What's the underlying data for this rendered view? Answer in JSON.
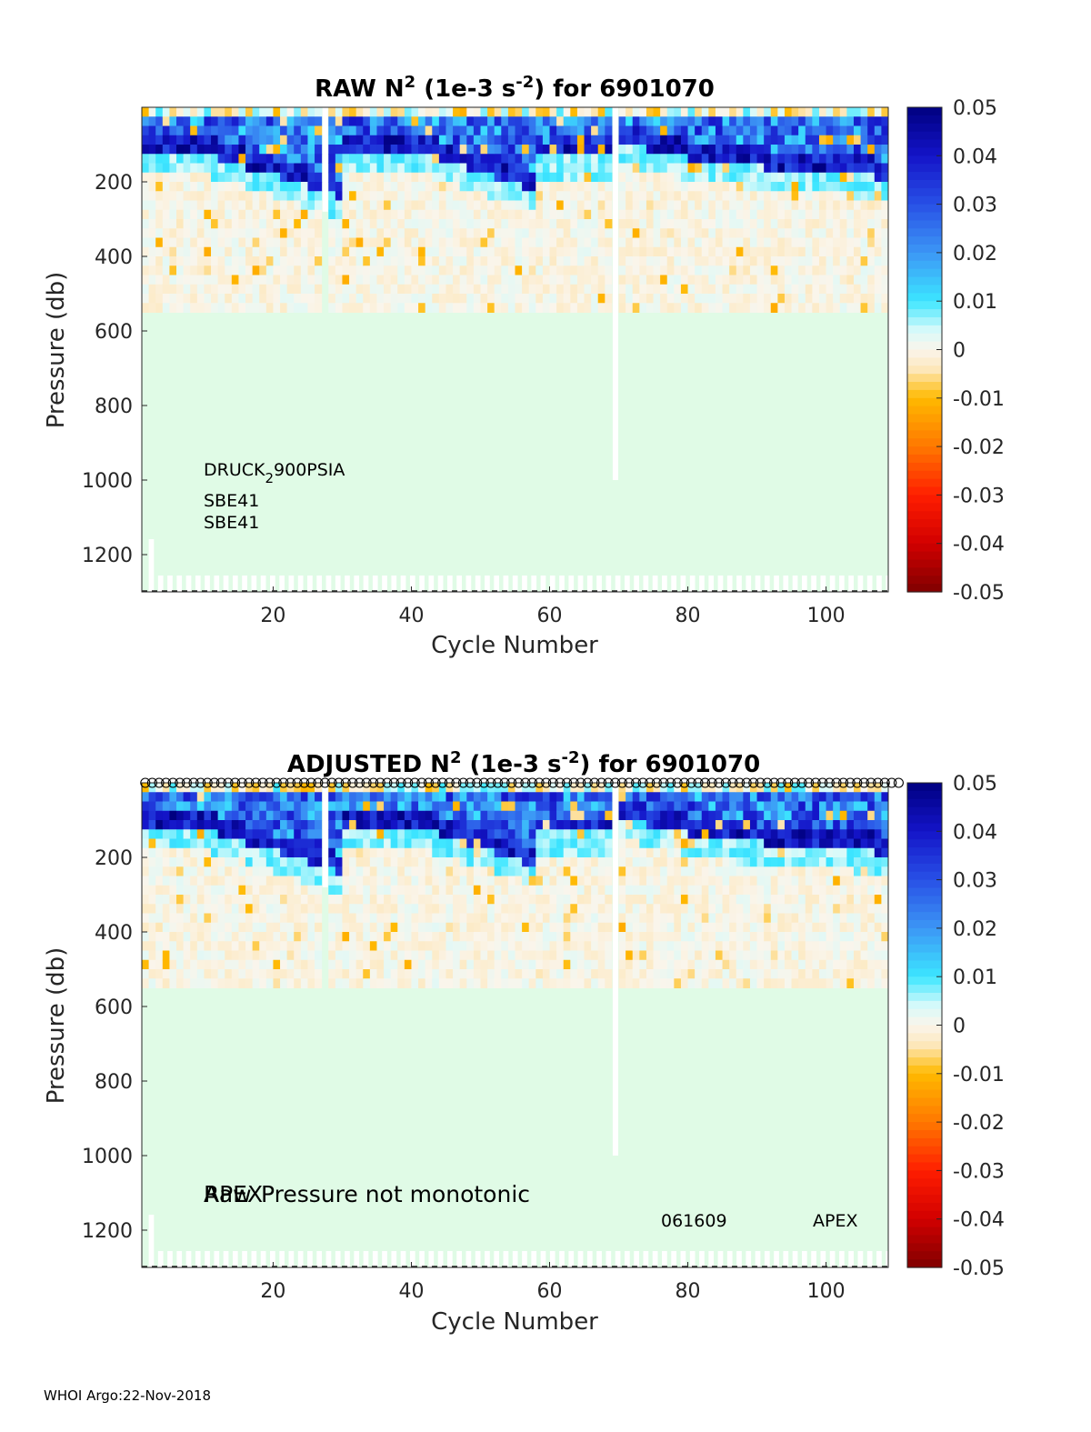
{
  "chart_data": [
    {
      "type": "heatmap",
      "id": "raw",
      "title_prefix": "RAW N",
      "title_sup": "2",
      "title_mid": " (1e-3 s",
      "title_sup2": "-2",
      "title_suffix": ") for 6901070",
      "xlabel": "Cycle Number",
      "ylabel": "Pressure (db)",
      "xlim": [
        1,
        109
      ],
      "ylim": [
        1300,
        0
      ],
      "xticks": [
        "20",
        "40",
        "60",
        "80",
        "100"
      ],
      "xtick_values": [
        20,
        40,
        60,
        80,
        100
      ],
      "yticks": [
        "200",
        "400",
        "600",
        "800",
        "1000",
        "1200"
      ],
      "ytick_values": [
        200,
        400,
        600,
        800,
        1000,
        1200
      ],
      "missing_cycles": [
        27,
        69
      ],
      "colorbar": {
        "range": [
          -0.05,
          0.05
        ],
        "ticks": [
          "0.05",
          "0.04",
          "0.03",
          "0.02",
          "0.01",
          "0",
          "-0.01",
          "-0.02",
          "-0.03",
          "-0.04",
          "-0.05"
        ]
      },
      "annotations": {
        "sensor": "DRUCK",
        "sensor_sub": "2",
        "sensor_rest": "900PSIA",
        "ctd_1": "SBE41",
        "ctd_2": "SBE41"
      }
    },
    {
      "type": "heatmap",
      "id": "adjusted",
      "title_prefix": "ADJUSTED N",
      "title_sup": "2",
      "title_mid": " (1e-3 s",
      "title_sup2": "-2",
      "title_suffix": ") for 6901070",
      "xlabel": "Cycle Number",
      "ylabel": "Pressure (db)",
      "xlim": [
        1,
        109
      ],
      "ylim": [
        1300,
        0
      ],
      "xticks": [
        "20",
        "40",
        "60",
        "80",
        "100"
      ],
      "xtick_values": [
        20,
        40,
        60,
        80,
        100
      ],
      "yticks": [
        "200",
        "400",
        "600",
        "800",
        "1000",
        "1200"
      ],
      "ytick_values": [
        200,
        400,
        600,
        800,
        1000,
        1200
      ],
      "missing_cycles": [
        27,
        69
      ],
      "colorbar": {
        "range": [
          -0.05,
          0.05
        ],
        "ticks": [
          "0.05",
          "0.04",
          "0.03",
          "0.02",
          "0.01",
          "0",
          "-0.01",
          "-0.02",
          "-0.03",
          "-0.04",
          "-0.05"
        ]
      },
      "annotations": {
        "overlap_a": "APEX",
        "overlap_b": "Raw",
        "warning": "Pressure not monotonic",
        "serial": "061609",
        "model": "APEX"
      }
    }
  ],
  "footer": "WHOI Argo:22-Nov-2018"
}
